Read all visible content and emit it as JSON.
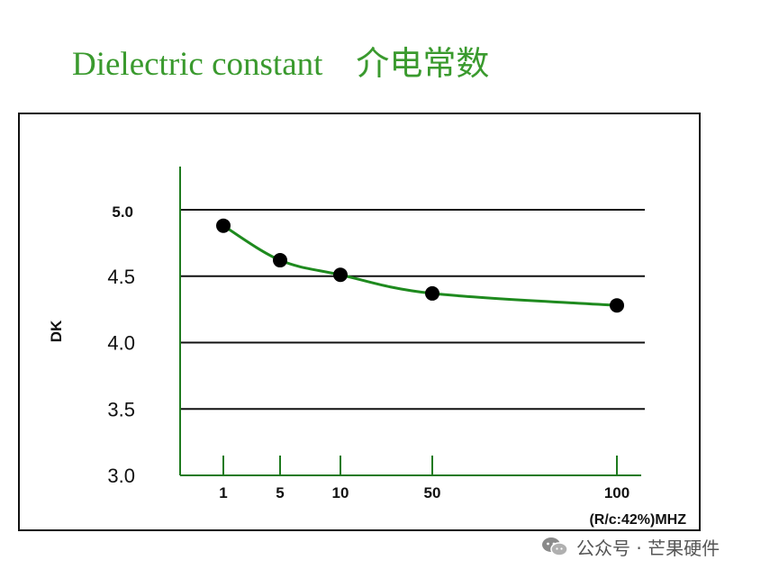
{
  "title": "Dielectric constant    介电常数",
  "colors": {
    "title": "#3a9a2e",
    "axis": "#1e7a1e",
    "curve": "#1e8a1e",
    "grid": "#111111",
    "marker": "#000000"
  },
  "chart_data": {
    "type": "line",
    "title": "",
    "ylabel": "DK",
    "xlabel": "(R/c:42%)MHZ",
    "ylim": [
      3.0,
      5.0
    ],
    "y_ticks": [
      "5.0",
      "4.5",
      "4.0",
      "3.5",
      "3.0"
    ],
    "x_ticks": [
      "1",
      "5",
      "10",
      "50",
      "100"
    ],
    "grid": "horizontal",
    "series": [
      {
        "x": [
          1,
          5,
          10,
          50,
          100
        ],
        "y": [
          4.88,
          4.62,
          4.51,
          4.37,
          4.28
        ]
      }
    ]
  },
  "watermark": {
    "icon": "wechat-icon",
    "text": "公众号 · 芒果硬件"
  }
}
